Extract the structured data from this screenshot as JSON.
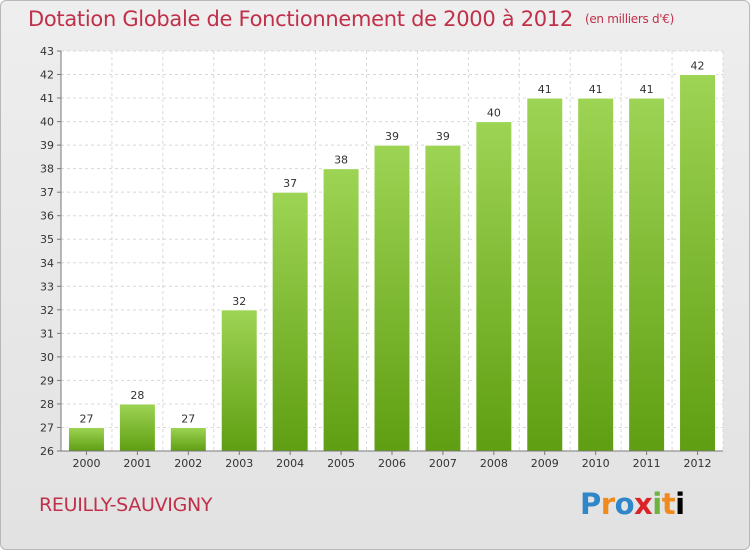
{
  "header": {
    "title": "Dotation Globale de Fonctionnement de 2000 à 2012",
    "unit": "(en milliers d'€)"
  },
  "footer": {
    "commune": "REUILLY-SAUVIGNY",
    "logo_letters": [
      "P",
      "r",
      "o",
      "x",
      "i",
      "t",
      "i"
    ]
  },
  "chart_data": {
    "type": "bar",
    "title": "Dotation Globale de Fonctionnement de 2000 à 2012",
    "subtitle": "(en milliers d'€)",
    "xlabel": "",
    "ylabel": "",
    "categories": [
      "2000",
      "2001",
      "2002",
      "2003",
      "2004",
      "2005",
      "2006",
      "2007",
      "2008",
      "2009",
      "2010",
      "2011",
      "2012"
    ],
    "values": [
      27,
      28,
      27,
      32,
      37,
      38,
      39,
      39,
      40,
      41,
      41,
      41,
      42
    ],
    "data_labels": [
      "27",
      "28",
      "27",
      "32",
      "37",
      "38",
      "39",
      "39",
      "40",
      "41",
      "41",
      "41",
      "42"
    ],
    "ylim": [
      26,
      43
    ],
    "yticks": [
      26,
      27,
      28,
      29,
      30,
      31,
      32,
      33,
      34,
      35,
      36,
      37,
      38,
      39,
      40,
      41,
      42,
      43
    ],
    "grid": true,
    "legend": "none",
    "colors": {
      "bar_top": "#9ed454",
      "bar_bottom": "#5f9e12",
      "bar_stroke": "#ffffff",
      "plot_background": "#ffffff",
      "grid": "#d8d8d8",
      "axis": "#777777",
      "text": "#333333",
      "title": "#c0304a"
    }
  }
}
